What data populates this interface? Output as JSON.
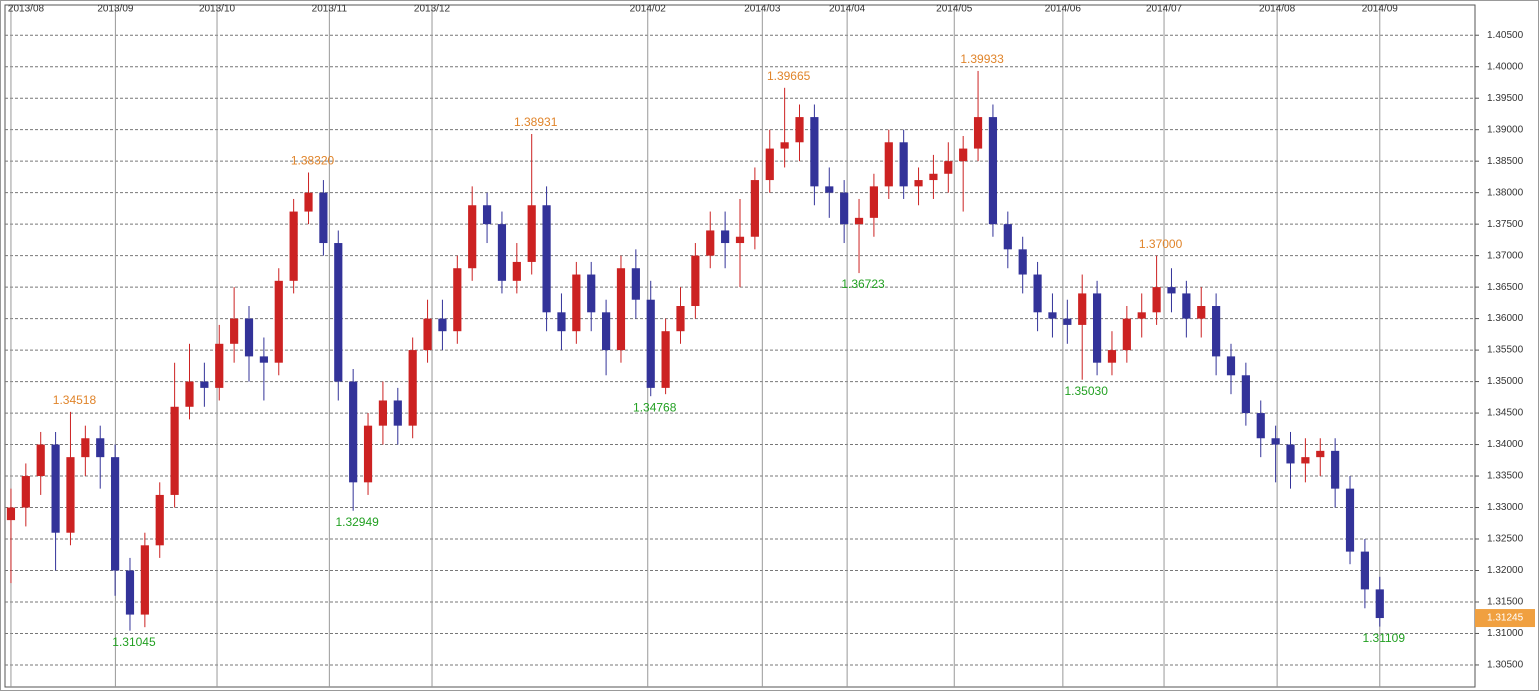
{
  "chart_data": {
    "type": "candlestick",
    "x": [
      0,
      1,
      2,
      3,
      4,
      5,
      6,
      7,
      8,
      9,
      10,
      11,
      12,
      13,
      14,
      15,
      16,
      17,
      18,
      19,
      20,
      21,
      22,
      23,
      24,
      25,
      26,
      27,
      28,
      29,
      30,
      31,
      32,
      33,
      34,
      35,
      36,
      37,
      38,
      39,
      40,
      41,
      42,
      43,
      44,
      45,
      46,
      47,
      48,
      49,
      50,
      51,
      52,
      53,
      54,
      55,
      56,
      57,
      58,
      59,
      60,
      61,
      62,
      63,
      64,
      65,
      66,
      67,
      68,
      69,
      70,
      71,
      72,
      73,
      74,
      75,
      76,
      77,
      78,
      79,
      80,
      81,
      82,
      83,
      84,
      85,
      86,
      87,
      88,
      89,
      90,
      91,
      92
    ],
    "open": [
      1.328,
      1.33,
      1.335,
      1.34,
      1.326,
      1.338,
      1.341,
      1.338,
      1.32,
      1.313,
      1.324,
      1.332,
      1.346,
      1.35,
      1.349,
      1.356,
      1.36,
      1.354,
      1.353,
      1.366,
      1.377,
      1.38,
      1.372,
      1.35,
      1.334,
      1.343,
      1.347,
      1.343,
      1.355,
      1.36,
      1.358,
      1.368,
      1.378,
      1.375,
      1.366,
      1.369,
      1.378,
      1.361,
      1.358,
      1.367,
      1.361,
      1.355,
      1.368,
      1.363,
      1.349,
      1.358,
      1.362,
      1.37,
      1.374,
      1.372,
      1.373,
      1.382,
      1.387,
      1.388,
      1.392,
      1.381,
      1.38,
      1.375,
      1.376,
      1.381,
      1.388,
      1.381,
      1.382,
      1.383,
      1.385,
      1.387,
      1.392,
      1.375,
      1.371,
      1.367,
      1.361,
      1.36,
      1.359,
      1.364,
      1.353,
      1.355,
      1.36,
      1.361,
      1.365,
      1.364,
      1.36,
      1.362,
      1.354,
      1.351,
      1.345,
      1.341,
      1.34,
      1.337,
      1.338,
      1.339,
      1.333,
      1.323,
      1.317
    ],
    "high": [
      1.333,
      1.337,
      1.342,
      1.342,
      1.34518,
      1.343,
      1.343,
      1.34,
      1.322,
      1.326,
      1.334,
      1.353,
      1.356,
      1.353,
      1.359,
      1.365,
      1.362,
      1.357,
      1.368,
      1.379,
      1.3832,
      1.382,
      1.374,
      1.352,
      1.345,
      1.35,
      1.349,
      1.357,
      1.363,
      1.363,
      1.37,
      1.381,
      1.38,
      1.377,
      1.372,
      1.38931,
      1.381,
      1.364,
      1.369,
      1.369,
      1.363,
      1.37,
      1.371,
      1.366,
      1.36,
      1.365,
      1.372,
      1.377,
      1.377,
      1.379,
      1.384,
      1.39,
      1.39665,
      1.394,
      1.394,
      1.384,
      1.382,
      1.379,
      1.383,
      1.39,
      1.39,
      1.384,
      1.386,
      1.388,
      1.389,
      1.39933,
      1.394,
      1.377,
      1.373,
      1.369,
      1.364,
      1.363,
      1.367,
      1.366,
      1.358,
      1.362,
      1.364,
      1.37,
      1.368,
      1.366,
      1.365,
      1.364,
      1.356,
      1.353,
      1.347,
      1.343,
      1.342,
      1.341,
      1.341,
      1.341,
      1.335,
      1.325,
      1.319
    ],
    "low": [
      1.318,
      1.327,
      1.332,
      1.32,
      1.324,
      1.335,
      1.333,
      1.316,
      1.31045,
      1.311,
      1.322,
      1.33,
      1.344,
      1.346,
      1.347,
      1.353,
      1.35,
      1.347,
      1.351,
      1.364,
      1.375,
      1.37,
      1.347,
      1.32949,
      1.332,
      1.34,
      1.34,
      1.341,
      1.353,
      1.355,
      1.356,
      1.366,
      1.372,
      1.364,
      1.364,
      1.367,
      1.358,
      1.355,
      1.356,
      1.358,
      1.351,
      1.353,
      1.36,
      1.34768,
      1.348,
      1.356,
      1.36,
      1.368,
      1.368,
      1.365,
      1.371,
      1.38,
      1.384,
      1.385,
      1.378,
      1.376,
      1.372,
      1.36723,
      1.373,
      1.379,
      1.379,
      1.378,
      1.379,
      1.38,
      1.377,
      1.385,
      1.373,
      1.368,
      1.364,
      1.358,
      1.357,
      1.356,
      1.3503,
      1.351,
      1.351,
      1.353,
      1.357,
      1.359,
      1.361,
      1.357,
      1.357,
      1.351,
      1.348,
      1.343,
      1.338,
      1.334,
      1.333,
      1.334,
      1.335,
      1.33,
      1.321,
      1.314,
      1.31109
    ],
    "close": [
      1.33,
      1.335,
      1.34,
      1.326,
      1.338,
      1.341,
      1.338,
      1.32,
      1.313,
      1.324,
      1.332,
      1.346,
      1.35,
      1.349,
      1.356,
      1.36,
      1.354,
      1.353,
      1.366,
      1.377,
      1.38,
      1.372,
      1.35,
      1.334,
      1.343,
      1.347,
      1.343,
      1.355,
      1.36,
      1.358,
      1.368,
      1.378,
      1.375,
      1.366,
      1.369,
      1.378,
      1.361,
      1.358,
      1.367,
      1.361,
      1.355,
      1.368,
      1.363,
      1.349,
      1.358,
      1.362,
      1.37,
      1.374,
      1.372,
      1.373,
      1.382,
      1.387,
      1.388,
      1.392,
      1.381,
      1.38,
      1.375,
      1.376,
      1.381,
      1.388,
      1.381,
      1.382,
      1.383,
      1.385,
      1.387,
      1.392,
      1.375,
      1.371,
      1.367,
      1.361,
      1.36,
      1.359,
      1.364,
      1.353,
      1.355,
      1.36,
      1.361,
      1.365,
      1.364,
      1.36,
      1.362,
      1.354,
      1.351,
      1.345,
      1.341,
      1.34,
      1.337,
      1.338,
      1.339,
      1.333,
      1.323,
      1.317,
      1.31245
    ],
    "up_color": "#cc2222",
    "down_color": "#333399",
    "xlim": [
      -0.4,
      98.4
    ],
    "xticks": [
      {
        "value": 0,
        "label": "2013/08"
      },
      {
        "value": 7.02,
        "label": "2013/09"
      },
      {
        "value": 13.85,
        "label": "2013/10"
      },
      {
        "value": 21.4,
        "label": "2013/11"
      },
      {
        "value": 28.3,
        "label": "2013/12"
      },
      {
        "value": 42.8,
        "label": "2014/02"
      },
      {
        "value": 50.5,
        "label": "2014/03"
      },
      {
        "value": 56.2,
        "label": "2014/04"
      },
      {
        "value": 63.4,
        "label": "2014/05"
      },
      {
        "value": 70.7,
        "label": "2014/06"
      },
      {
        "value": 77.5,
        "label": "2014/07"
      },
      {
        "value": 85.1,
        "label": "2014/08"
      },
      {
        "value": 92,
        "label": "2014/09"
      }
    ],
    "ylim": [
      1.3015,
      1.4098
    ],
    "yticks": [
      {
        "value": 1.305,
        "label": "1.30500"
      },
      {
        "value": 1.31,
        "label": "1.31000"
      },
      {
        "value": 1.315,
        "label": "1.31500"
      },
      {
        "value": 1.32,
        "label": "1.32000"
      },
      {
        "value": 1.325,
        "label": "1.32500"
      },
      {
        "value": 1.33,
        "label": "1.33000"
      },
      {
        "value": 1.335,
        "label": "1.33500"
      },
      {
        "value": 1.34,
        "label": "1.34000"
      },
      {
        "value": 1.345,
        "label": "1.34500"
      },
      {
        "value": 1.35,
        "label": "1.35000"
      },
      {
        "value": 1.355,
        "label": "1.35500"
      },
      {
        "value": 1.36,
        "label": "1.36000"
      },
      {
        "value": 1.365,
        "label": "1.36500"
      },
      {
        "value": 1.37,
        "label": "1.37000"
      },
      {
        "value": 1.375,
        "label": "1.37500"
      },
      {
        "value": 1.38,
        "label": "1.38000"
      },
      {
        "value": 1.385,
        "label": "1.38500"
      },
      {
        "value": 1.39,
        "label": "1.39000"
      },
      {
        "value": 1.395,
        "label": "1.39500"
      },
      {
        "value": 1.4,
        "label": "1.40000"
      },
      {
        "value": 1.405,
        "label": "1.40500"
      }
    ],
    "grid": true,
    "annotations": [
      {
        "x": 4,
        "value": 1.34518,
        "label": "1.34518",
        "kind": "high",
        "color": "#e0842a"
      },
      {
        "x": 8,
        "value": 1.31045,
        "label": "1.31045",
        "kind": "low",
        "color": "#22a022"
      },
      {
        "x": 20,
        "value": 1.3832,
        "label": "1.38320",
        "kind": "high",
        "color": "#e0842a"
      },
      {
        "x": 23,
        "value": 1.32949,
        "label": "1.32949",
        "kind": "low",
        "color": "#22a022"
      },
      {
        "x": 35,
        "value": 1.38931,
        "label": "1.38931",
        "kind": "high",
        "color": "#e0842a"
      },
      {
        "x": 43,
        "value": 1.34768,
        "label": "1.34768",
        "kind": "low",
        "color": "#22a022"
      },
      {
        "x": 52,
        "value": 1.39665,
        "label": "1.39665",
        "kind": "high",
        "color": "#e0842a"
      },
      {
        "x": 57,
        "value": 1.36723,
        "label": "1.36723",
        "kind": "low",
        "color": "#22a022"
      },
      {
        "x": 65,
        "value": 1.39933,
        "label": "1.39933",
        "kind": "high",
        "color": "#e0842a"
      },
      {
        "x": 72,
        "value": 1.3503,
        "label": "1.35030",
        "kind": "low",
        "color": "#22a022"
      },
      {
        "x": 77,
        "value": 1.37,
        "label": "1.37000",
        "kind": "high",
        "color": "#e0842a"
      },
      {
        "x": 92,
        "value": 1.31109,
        "label": "1.31109",
        "kind": "low",
        "color": "#22a022"
      }
    ],
    "last_price": 1.31245,
    "last_price_color": "#f0a040"
  }
}
